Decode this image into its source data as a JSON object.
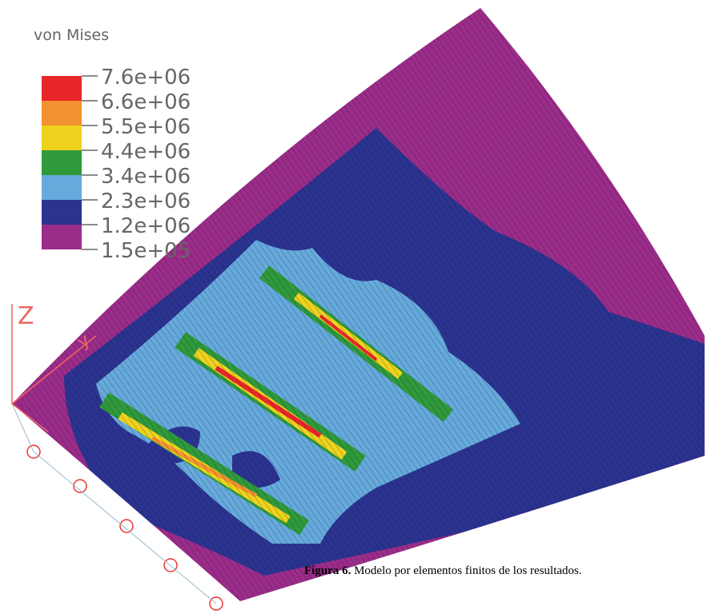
{
  "legend": {
    "title": "von Mises",
    "labels": [
      "7.6e+06",
      "6.6e+06",
      "5.5e+06",
      "4.4e+06",
      "3.4e+06",
      "2.3e+06",
      "1.2e+06",
      "1.5e+05"
    ],
    "colors": [
      "#e8272b",
      "#f3922e",
      "#efd21e",
      "#2f9a3c",
      "#66aadd",
      "#2b3391",
      "#9b2c8a"
    ]
  },
  "axes": {
    "z": "Z",
    "y": "y"
  },
  "caption": {
    "label": "Figura 6.",
    "text": " Modelo por elementos finitos de los resultados."
  }
}
